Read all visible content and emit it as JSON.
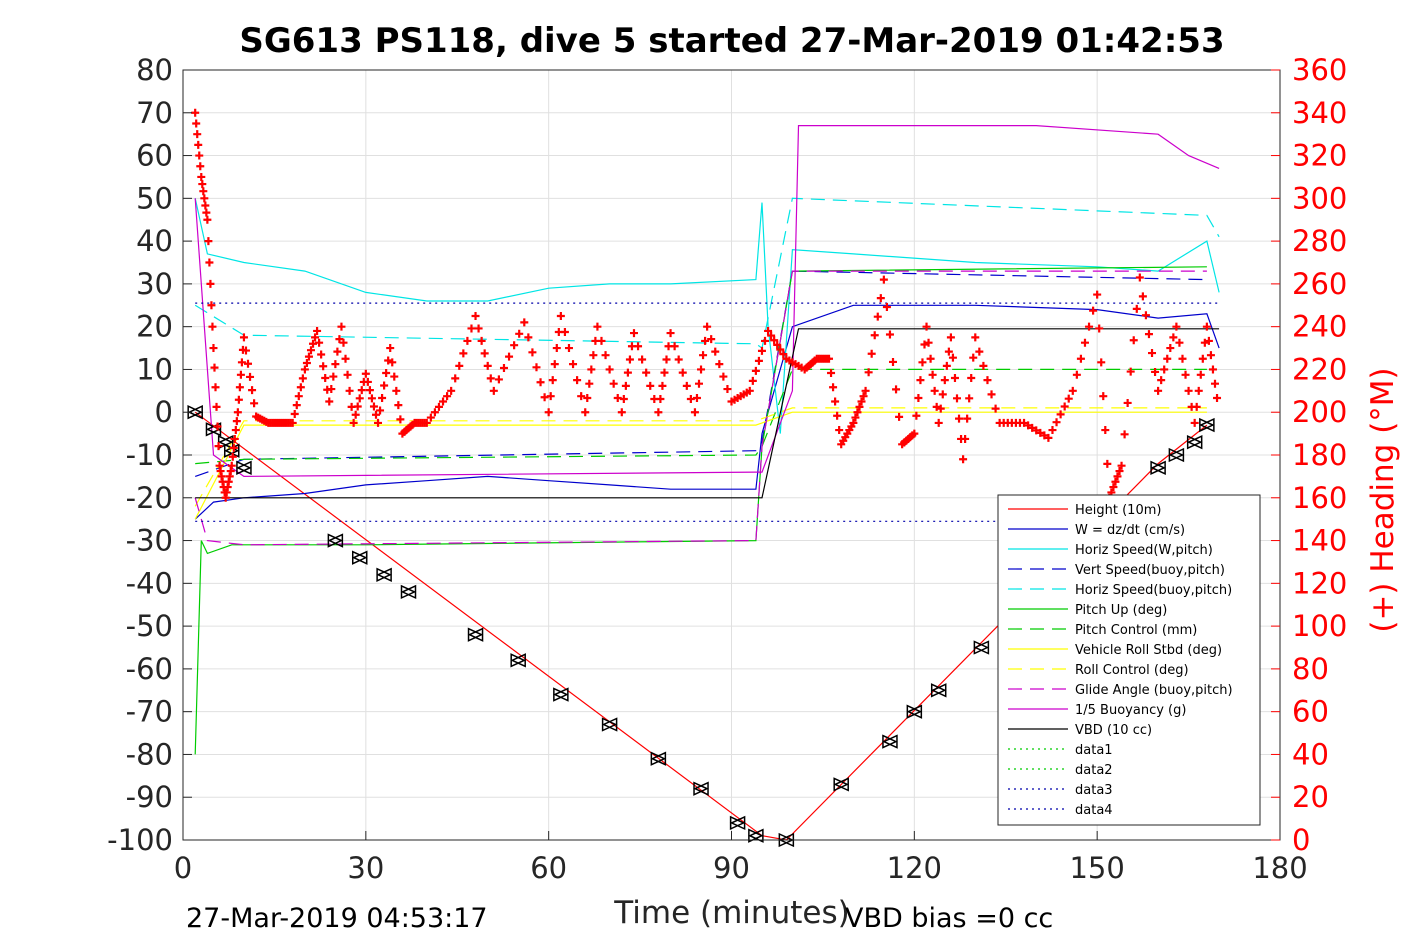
{
  "chart_data": {
    "type": "line",
    "title": "SG613 PS118, dive 5 started 27-Mar-2019 01:42:53",
    "xlabel": "Time (minutes)",
    "ylabel_right": "(+) Heading (°M)",
    "footer_left": "27-Mar-2019 04:53:17",
    "footer_right": "VBD bias =0 cc",
    "xlim": [
      0,
      180
    ],
    "ylim": [
      -100,
      80
    ],
    "ylim_right": [
      0,
      360
    ],
    "x_ticks": [
      "0",
      "30",
      "60",
      "90",
      "120",
      "150",
      "180"
    ],
    "y_ticks": [
      "80",
      "70",
      "60",
      "50",
      "40",
      "30",
      "20",
      "10",
      "0",
      "-10",
      "-20",
      "-30",
      "-40",
      "-50",
      "-60",
      "-70",
      "-80",
      "-90",
      "-100"
    ],
    "y_ticks_right": [
      "360",
      "340",
      "320",
      "300",
      "280",
      "260",
      "240",
      "220",
      "200",
      "180",
      "160",
      "140",
      "120",
      "100",
      "80",
      "60",
      "40",
      "20",
      "0"
    ],
    "grid": true,
    "legend_position": "lower-right",
    "colors": {
      "height": "#ff0000",
      "w": "#0000cc",
      "horiz_w": "#00e5e5",
      "vert_buoy": "#0000cc",
      "horiz_buoy": "#00e5e5",
      "pitch_up": "#00cc00",
      "pitch_ctl": "#00cc00",
      "roll": "#ffff00",
      "roll_ctl": "#ffff00",
      "glide": "#cc00cc",
      "buoyancy": "#cc00cc",
      "vbd": "#000000",
      "heading": "#ff0000",
      "data12": "#00cc00",
      "data34": "#0000aa"
    },
    "series": [
      {
        "name": "Height (10m)",
        "x": [
          2,
          95,
          99,
          160,
          168
        ],
        "y": [
          0,
          -99,
          -100,
          -12,
          -3
        ]
      },
      {
        "name": "W = dz/dt (cm/s)",
        "x": [
          2,
          5,
          10,
          20,
          30,
          40,
          50,
          60,
          70,
          80,
          94,
          95,
          100,
          110,
          130,
          150,
          160,
          168,
          170
        ],
        "y": [
          -25,
          -21,
          -20,
          -19,
          -17,
          -16,
          -15,
          -16,
          -17,
          -18,
          -18,
          -5,
          20,
          25,
          25,
          24,
          22,
          23,
          15
        ]
      },
      {
        "name": "Horiz Speed(W,pitch)",
        "x": [
          2,
          4,
          10,
          20,
          30,
          40,
          50,
          60,
          70,
          80,
          94,
          95,
          96,
          98,
          100,
          110,
          130,
          150,
          160,
          168,
          170
        ],
        "y": [
          50,
          37,
          35,
          33,
          28,
          26,
          26,
          29,
          30,
          30,
          31,
          49,
          20,
          -5,
          38,
          37,
          35,
          34,
          33,
          40,
          28
        ]
      },
      {
        "name": "Vert Speed(buoy,pitch)",
        "x": [
          2,
          10,
          94,
          95,
          100,
          168
        ],
        "y": [
          -15,
          -11,
          -9,
          -7,
          33,
          31
        ]
      },
      {
        "name": "Horiz Speed(buoy,pitch)",
        "x": [
          2,
          10,
          94,
          95,
          100,
          168,
          170
        ],
        "y": [
          25,
          18,
          16,
          15,
          50,
          46,
          41
        ]
      },
      {
        "name": "Pitch Up (deg)",
        "x": [
          2,
          3,
          4,
          8,
          30,
          94,
          95,
          100,
          168
        ],
        "y": [
          -80,
          -30,
          -33,
          -31,
          -31,
          -30,
          -8,
          33,
          34
        ]
      },
      {
        "name": "Pitch Control (mm)",
        "x": [
          2,
          10,
          94,
          95,
          100,
          168
        ],
        "y": [
          -12,
          -11,
          -10,
          -8,
          10,
          10
        ]
      },
      {
        "name": "Vehicle Roll Stbd (deg)",
        "x": [
          2,
          10,
          94,
          100,
          168
        ],
        "y": [
          -25,
          -3,
          -3,
          0,
          0
        ]
      },
      {
        "name": "Roll Control (deg)",
        "x": [
          2,
          10,
          94,
          100,
          168
        ],
        "y": [
          -22,
          -2,
          -2,
          1,
          1
        ]
      },
      {
        "name": "Glide Angle (buoy,pitch)",
        "x": [
          2,
          4,
          10,
          94,
          95,
          100,
          168
        ],
        "y": [
          -20,
          -30,
          -31,
          -30,
          -8,
          33,
          33
        ]
      },
      {
        "name": "1/5 Buoyancy (g)",
        "x": [
          2,
          5,
          10,
          94,
          95,
          100,
          101,
          140,
          160,
          165,
          170
        ],
        "y": [
          50,
          -10,
          -15,
          -14,
          -14,
          5,
          67,
          67,
          65,
          60,
          57
        ]
      },
      {
        "name": "VBD (10 cc)",
        "x": [
          2,
          4,
          94,
          95,
          101,
          170
        ],
        "y": [
          -20,
          -20,
          -20,
          -20,
          19.5,
          19.5
        ]
      },
      {
        "name": "data1",
        "x": [],
        "y": []
      },
      {
        "name": "data2",
        "x": [],
        "y": []
      },
      {
        "name": "data3",
        "x": [
          2,
          170
        ],
        "y": [
          25.5,
          25.5
        ]
      },
      {
        "name": "data4",
        "x": [
          2,
          170
        ],
        "y": [
          -25.5,
          -25.5
        ]
      },
      {
        "name": "heading",
        "axis": "right",
        "x": [
          2,
          3,
          4,
          5,
          6,
          7,
          8,
          9,
          10,
          12,
          14,
          16,
          18,
          20,
          22,
          24,
          26,
          28,
          30,
          32,
          34,
          36,
          38,
          40,
          44,
          48,
          51,
          56,
          60,
          62,
          66,
          68,
          72,
          74,
          78,
          80,
          84,
          86,
          90,
          93,
          96,
          99,
          102,
          104,
          106,
          108,
          110,
          112,
          115,
          118,
          120,
          122,
          124,
          126,
          128,
          130,
          134,
          138,
          142,
          146,
          150,
          152,
          154,
          157,
          160,
          163,
          166,
          168,
          170
        ],
        "y": [
          340,
          310,
          290,
          230,
          175,
          160,
          175,
          200,
          235,
          198,
          195,
          195,
          195,
          220,
          238,
          205,
          240,
          195,
          218,
          195,
          230,
          190,
          195,
          195,
          210,
          245,
          210,
          242,
          200,
          245,
          200,
          240,
          200,
          237,
          200,
          237,
          200,
          240,
          205,
          210,
          238,
          225,
          220,
          225,
          225,
          185,
          195,
          210,
          262,
          185,
          190,
          240,
          195,
          235,
          178,
          235,
          195,
          195,
          188,
          210,
          255,
          160,
          175,
          263,
          210,
          240,
          195,
          240,
          200
        ]
      }
    ],
    "markers": {
      "name": "Height (10m)",
      "x": [
        2,
        5,
        7,
        8,
        10,
        25,
        29,
        33,
        37,
        48,
        55,
        62,
        70,
        78,
        85,
        91,
        94,
        99,
        108,
        116,
        120,
        124,
        131,
        160,
        163,
        166,
        168
      ],
      "y": [
        0,
        -4,
        -7,
        -9,
        -13,
        -30,
        -34,
        -38,
        -42,
        -52,
        -58,
        -66,
        -73,
        -81,
        -88,
        -96,
        -99,
        -100,
        -87,
        -77,
        -70,
        -65,
        -55,
        -13,
        -10,
        -7,
        -3
      ]
    }
  }
}
